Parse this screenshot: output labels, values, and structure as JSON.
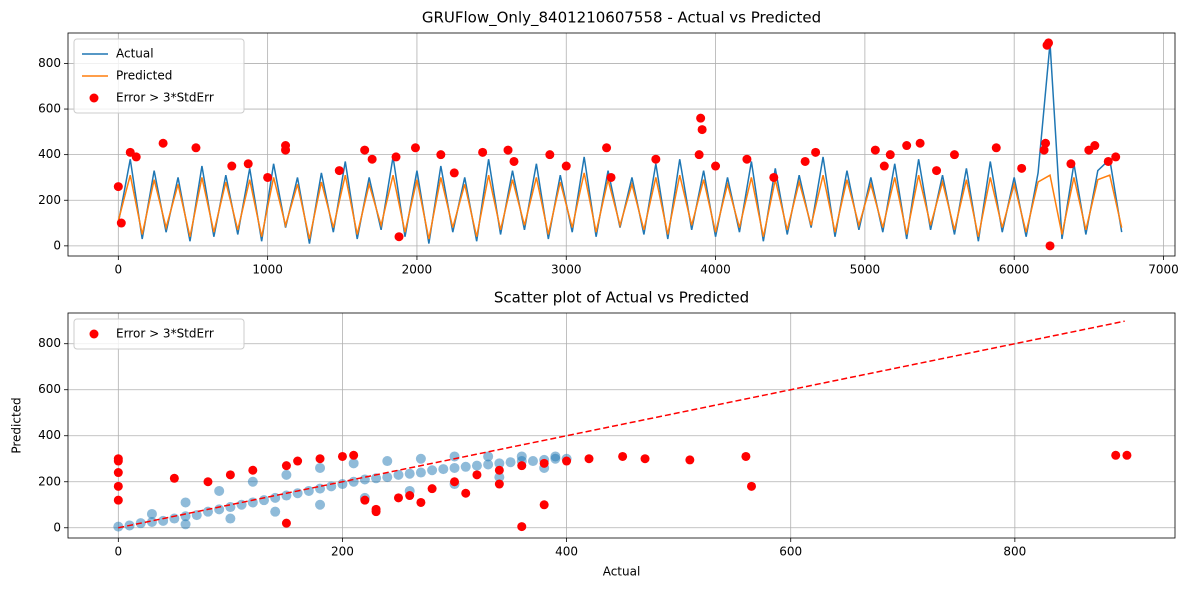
{
  "chart_data": [
    {
      "type": "line",
      "title": "GRUFlow_Only_8401210607558 - Actual vs Predicted",
      "x": [
        0,
        80,
        160,
        240,
        320,
        400,
        480,
        560,
        640,
        720,
        800,
        880,
        960,
        1040,
        1120,
        1200,
        1280,
        1360,
        1440,
        1520,
        1600,
        1680,
        1760,
        1840,
        1920,
        2000,
        2080,
        2160,
        2240,
        2320,
        2400,
        2480,
        2560,
        2640,
        2720,
        2800,
        2880,
        2960,
        3040,
        3120,
        3200,
        3280,
        3360,
        3440,
        3520,
        3600,
        3680,
        3760,
        3840,
        3920,
        4000,
        4080,
        4160,
        4240,
        4320,
        4400,
        4480,
        4560,
        4640,
        4720,
        4800,
        4880,
        4960,
        5040,
        5120,
        5200,
        5280,
        5360,
        5440,
        5520,
        5600,
        5680,
        5760,
        5840,
        5920,
        6000,
        6080,
        6160,
        6240,
        6320,
        6400,
        6480,
        6560,
        6640,
        6720
      ],
      "series": [
        {
          "name": "Actual",
          "color": "#1f77b4",
          "values": [
            100,
            380,
            30,
            330,
            60,
            300,
            20,
            350,
            40,
            310,
            50,
            340,
            20,
            360,
            80,
            300,
            10,
            320,
            60,
            370,
            30,
            300,
            70,
            390,
            40,
            330,
            10,
            350,
            60,
            300,
            20,
            380,
            50,
            330,
            70,
            360,
            30,
            310,
            60,
            390,
            40,
            330,
            80,
            300,
            50,
            360,
            30,
            380,
            70,
            330,
            40,
            300,
            60,
            370,
            20,
            340,
            50,
            310,
            80,
            390,
            40,
            330,
            70,
            300,
            60,
            360,
            30,
            380,
            70,
            310,
            50,
            340,
            20,
            370,
            60,
            300,
            40,
            320,
            889,
            30,
            360,
            50,
            330,
            380,
            60
          ]
        },
        {
          "name": "Predicted",
          "color": "#ff7f0e",
          "values": [
            110,
            310,
            50,
            290,
            80,
            270,
            40,
            300,
            60,
            280,
            70,
            290,
            40,
            300,
            90,
            270,
            30,
            280,
            80,
            310,
            50,
            270,
            90,
            310,
            60,
            290,
            30,
            300,
            80,
            270,
            40,
            310,
            70,
            290,
            90,
            300,
            50,
            280,
            80,
            320,
            60,
            290,
            90,
            270,
            70,
            300,
            50,
            310,
            90,
            290,
            60,
            270,
            80,
            300,
            40,
            290,
            70,
            280,
            90,
            310,
            60,
            290,
            90,
            270,
            80,
            300,
            50,
            310,
            90,
            280,
            70,
            290,
            40,
            300,
            80,
            270,
            60,
            280,
            310,
            50,
            300,
            70,
            290,
            310,
            80
          ]
        },
        {
          "name": "Error > 3*StdErr",
          "color": "#ff0000",
          "type": "scatter",
          "x": [
            0,
            20,
            80,
            120,
            300,
            520,
            760,
            870,
            1000,
            1120,
            1120,
            1480,
            1650,
            1700,
            1860,
            1880,
            1990,
            2160,
            2250,
            2440,
            2610,
            2650,
            2890,
            3000,
            3270,
            3300,
            3600,
            3890,
            3900,
            3910,
            4000,
            4210,
            4390,
            4600,
            4670,
            5070,
            5130,
            5170,
            5280,
            5370,
            5480,
            5600,
            5880,
            6050,
            6200,
            6210,
            6220,
            6230,
            6240,
            6380,
            6500,
            6540,
            6630,
            6680
          ],
          "values": [
            260,
            100,
            410,
            390,
            450,
            430,
            350,
            360,
            300,
            440,
            420,
            330,
            420,
            380,
            390,
            40,
            430,
            400,
            320,
            410,
            420,
            370,
            400,
            350,
            430,
            300,
            380,
            400,
            560,
            510,
            350,
            380,
            300,
            370,
            410,
            420,
            350,
            400,
            440,
            450,
            330,
            400,
            430,
            340,
            420,
            450,
            880,
            890,
            0,
            360,
            420,
            440,
            370,
            390
          ]
        }
      ],
      "xlim": [
        -337,
        7077
      ],
      "ylim": [
        -44.5,
        933.5
      ],
      "xticks": [
        0,
        1000,
        2000,
        3000,
        4000,
        5000,
        6000,
        7000
      ],
      "yticks": [
        0,
        200,
        400,
        600,
        800
      ],
      "grid": true,
      "legend": "upper left"
    },
    {
      "type": "scatter",
      "title": "Scatter plot of Actual vs Predicted",
      "x_label": "Actual",
      "y_label": "Predicted",
      "series": [
        {
          "color": "#1f77b4",
          "alpha": 0.5,
          "type": "scatter",
          "x": [
            0,
            10,
            20,
            30,
            40,
            50,
            60,
            70,
            80,
            90,
            100,
            110,
            120,
            130,
            140,
            150,
            160,
            170,
            180,
            190,
            200,
            210,
            220,
            230,
            240,
            250,
            260,
            270,
            280,
            290,
            300,
            310,
            320,
            330,
            340,
            350,
            360,
            370,
            380,
            390,
            400,
            30,
            60,
            90,
            120,
            150,
            180,
            210,
            240,
            270,
            300,
            330,
            360,
            390,
            60,
            100,
            140,
            180,
            220,
            260,
            300,
            340,
            380
          ],
          "values": [
            5,
            10,
            20,
            25,
            30,
            40,
            50,
            55,
            70,
            80,
            90,
            100,
            110,
            120,
            130,
            140,
            150,
            160,
            170,
            180,
            190,
            200,
            210,
            215,
            220,
            230,
            235,
            240,
            250,
            255,
            260,
            265,
            270,
            275,
            280,
            285,
            290,
            290,
            295,
            300,
            300,
            60,
            110,
            160,
            200,
            230,
            260,
            280,
            290,
            300,
            310,
            310,
            310,
            310,
            15,
            40,
            70,
            100,
            130,
            160,
            190,
            220,
            260
          ]
        },
        {
          "name": "Error > 3*StdErr",
          "color": "#ff0000",
          "type": "scatter",
          "x": [
            0,
            0,
            0,
            0,
            0,
            50,
            80,
            100,
            120,
            150,
            160,
            180,
            200,
            210,
            150,
            220,
            230,
            250,
            260,
            280,
            300,
            320,
            340,
            360,
            380,
            400,
            420,
            450,
            470,
            510,
            560,
            565,
            360,
            340,
            380,
            890,
            900,
            230,
            270,
            310
          ],
          "values": [
            300,
            290,
            240,
            180,
            120,
            215,
            200,
            230,
            250,
            270,
            290,
            300,
            310,
            315,
            20,
            120,
            70,
            130,
            140,
            170,
            200,
            230,
            250,
            270,
            280,
            290,
            300,
            310,
            300,
            295,
            310,
            180,
            5,
            190,
            100,
            315,
            315,
            80,
            110,
            150
          ]
        },
        {
          "color": "#ff0000",
          "type": "line",
          "dash": true,
          "x": [
            0,
            898
          ],
          "values": [
            0,
            898
          ]
        }
      ],
      "xlim": [
        -44.9,
        942.9
      ],
      "ylim": [
        -44.5,
        933.5
      ],
      "xticks": [
        0,
        200,
        400,
        600,
        800
      ],
      "yticks": [
        0,
        200,
        400,
        600,
        800
      ],
      "grid": true,
      "legend": "upper left"
    }
  ]
}
